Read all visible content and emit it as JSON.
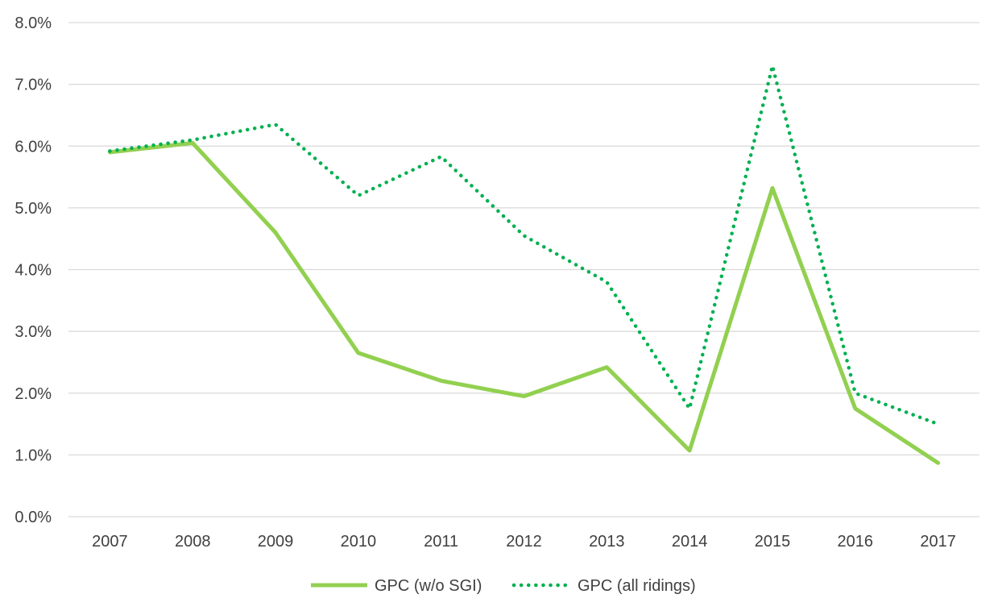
{
  "chart_data": {
    "type": "line",
    "title": "",
    "xlabel": "",
    "ylabel": "",
    "categories": [
      "2007",
      "2008",
      "2009",
      "2010",
      "2011",
      "2012",
      "2013",
      "2014",
      "2015",
      "2016",
      "2017"
    ],
    "ylim": [
      0,
      8
    ],
    "y_ticks": [
      "0.0%",
      "1.0%",
      "2.0%",
      "3.0%",
      "4.0%",
      "5.0%",
      "6.0%",
      "7.0%",
      "8.0%"
    ],
    "grid": true,
    "legend_position": "bottom",
    "series": [
      {
        "name": "GPC (w/o SGI)",
        "style": "solid",
        "color": "#92d050",
        "values": [
          5.9,
          6.05,
          4.6,
          2.65,
          2.2,
          1.95,
          2.42,
          1.07,
          5.32,
          1.75,
          0.87
        ]
      },
      {
        "name": "GPC (all ridings)",
        "style": "dotted",
        "color": "#00b050",
        "values": [
          5.92,
          6.1,
          6.35,
          5.2,
          5.83,
          4.55,
          3.8,
          1.75,
          7.3,
          2.0,
          1.5
        ]
      }
    ]
  }
}
